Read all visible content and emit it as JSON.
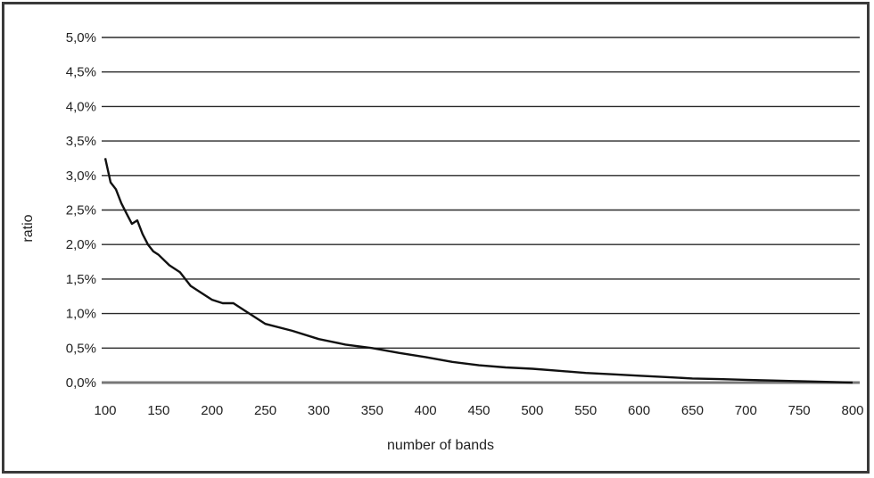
{
  "chart_data": {
    "type": "line",
    "xlabel": "number of bands",
    "ylabel": "ratio",
    "xlim": [
      100,
      800
    ],
    "ylim": [
      0,
      5
    ],
    "x_ticks": [
      "100",
      "150",
      "200",
      "250",
      "300",
      "350",
      "400",
      "450",
      "500",
      "550",
      "600",
      "650",
      "700",
      "750",
      "800"
    ],
    "y_ticks": [
      "0,0%",
      "0,5%",
      "1,0%",
      "1,5%",
      "2,0%",
      "2,5%",
      "3,0%",
      "3,5%",
      "4,0%",
      "4,5%",
      "5,0%"
    ],
    "grid": "horizontal",
    "series": [
      {
        "x": [
          100,
          105,
          110,
          115,
          120,
          125,
          130,
          135,
          140,
          145,
          150,
          160,
          170,
          180,
          190,
          200,
          210,
          220,
          230,
          240,
          250,
          275,
          300,
          325,
          350,
          375,
          400,
          425,
          450,
          475,
          500,
          525,
          550,
          575,
          600,
          625,
          650,
          675,
          700,
          725,
          750,
          775,
          800
        ],
        "y": [
          3.25,
          2.9,
          2.8,
          2.6,
          2.45,
          2.3,
          2.35,
          2.15,
          2.0,
          1.9,
          1.85,
          1.7,
          1.6,
          1.4,
          1.3,
          1.2,
          1.15,
          1.15,
          1.05,
          0.95,
          0.85,
          0.75,
          0.63,
          0.55,
          0.5,
          0.43,
          0.37,
          0.3,
          0.25,
          0.22,
          0.2,
          0.17,
          0.14,
          0.12,
          0.1,
          0.08,
          0.06,
          0.05,
          0.04,
          0.03,
          0.02,
          0.01,
          0.0
        ],
        "color": "#111111"
      }
    ]
  }
}
